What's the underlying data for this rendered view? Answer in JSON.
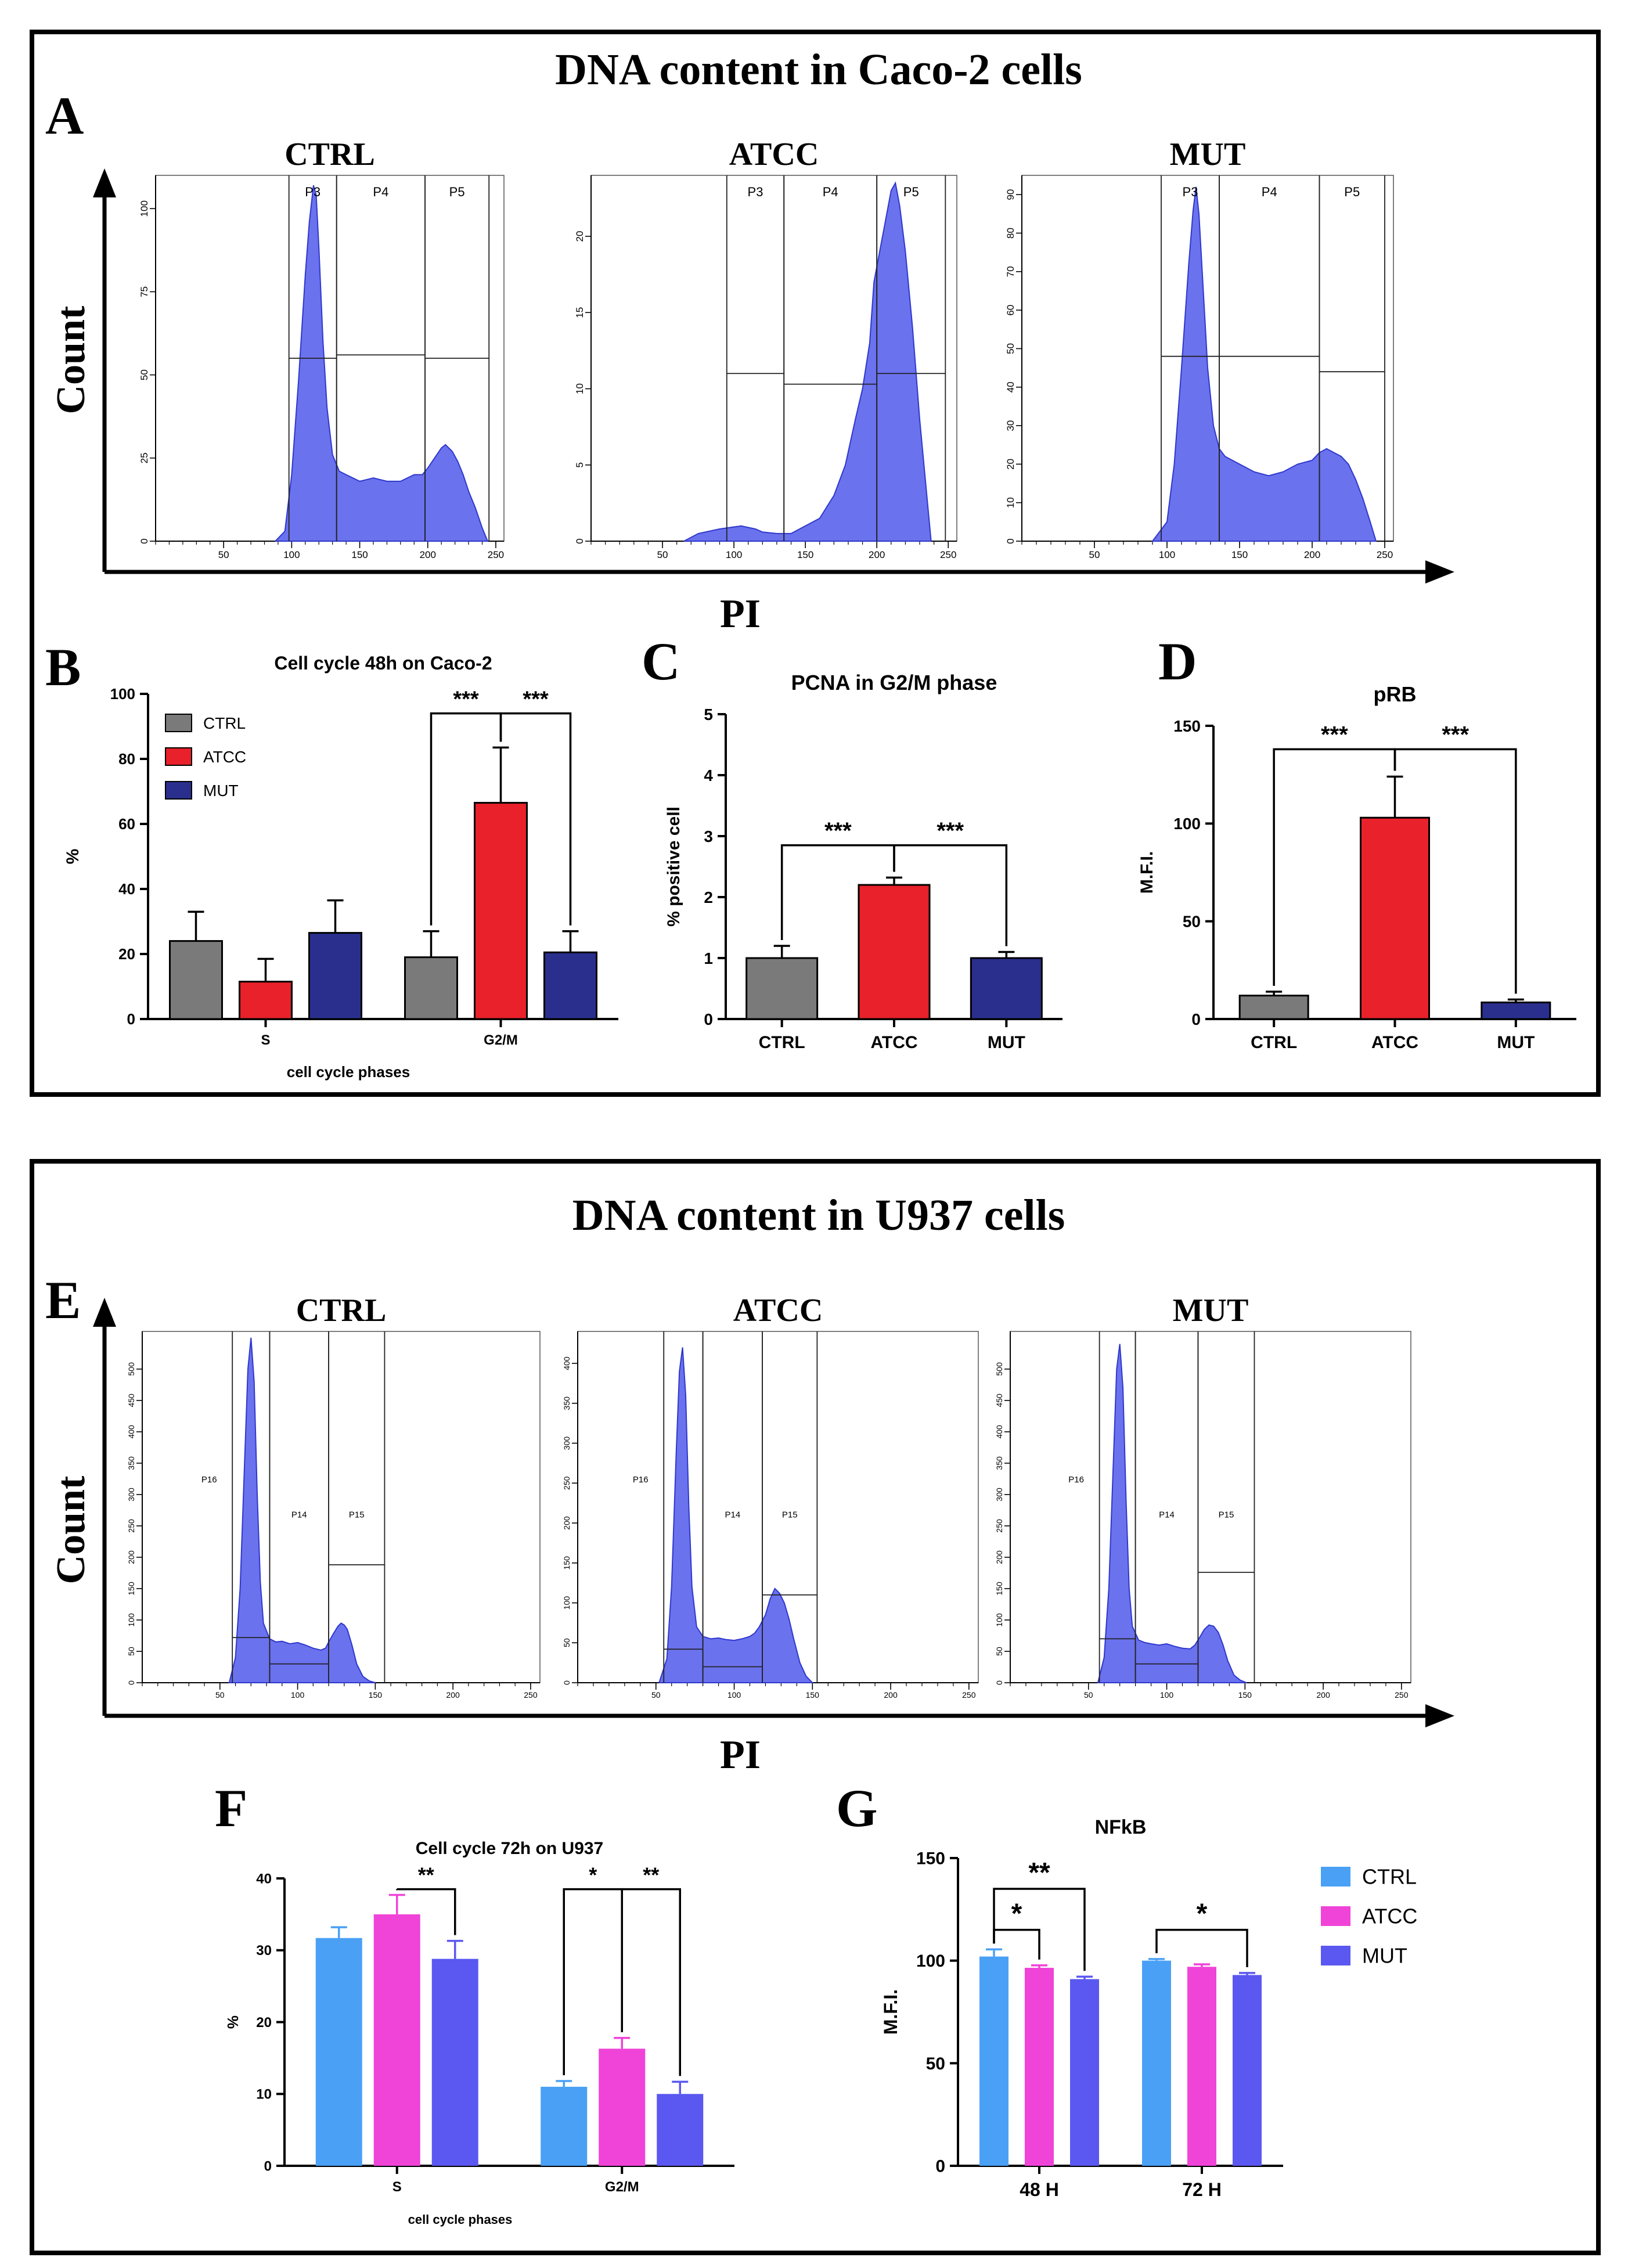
{
  "figure": {
    "top_box_title": "DNA content in Caco-2 cells",
    "bottom_box_title": "DNA content in U937 cells",
    "panel_letters": [
      "A",
      "B",
      "C",
      "D",
      "E",
      "F",
      "G"
    ],
    "count_label": "Count",
    "pi_label": "PI"
  },
  "colors": {
    "histogram_fill": "#6b72ee",
    "histogram_line": "#2f38cc",
    "caco_ctrl": "#7a7a7a",
    "caco_atcc": "#e8212a",
    "caco_mut": "#2a2f8e",
    "u937_ctrl": "#4aa0f5",
    "u937_atcc": "#f043d8",
    "u937_mut": "#5a58f0"
  },
  "chart_data": [
    {
      "type": "area",
      "panel": "A-CTRL",
      "title": "CTRL",
      "xlabel": "PI",
      "ylabel": "Count",
      "xlim": [
        0,
        256
      ],
      "ylim": [
        0,
        110
      ],
      "xticks": [
        "50",
        "100",
        "150",
        "200",
        "250"
      ],
      "yticks": [
        "0",
        "25",
        "50",
        "75",
        "100"
      ],
      "x": [
        88,
        95,
        100,
        105,
        110,
        113,
        116,
        118,
        120,
        123,
        126,
        130,
        135,
        140,
        150,
        160,
        170,
        180,
        190,
        196,
        200,
        205,
        210,
        213,
        218,
        222,
        226,
        230,
        235,
        240,
        244
      ],
      "y": [
        0,
        3,
        20,
        48,
        80,
        96,
        107,
        104,
        88,
        60,
        40,
        26,
        21,
        20,
        18,
        19,
        18,
        18,
        20,
        20,
        22,
        25,
        28,
        29,
        27,
        24,
        20,
        15,
        10,
        4,
        0
      ],
      "gates": [
        {
          "label": "P3",
          "x0": 98,
          "x1": 133,
          "level": 55
        },
        {
          "label": "P4",
          "x0": 133,
          "x1": 198,
          "level": 56
        },
        {
          "label": "P5",
          "x0": 198,
          "x1": 245,
          "level": 55
        }
      ]
    },
    {
      "type": "area",
      "panel": "A-ATCC",
      "title": "ATCC",
      "xlabel": "PI",
      "ylabel": "Count",
      "xlim": [
        0,
        256
      ],
      "ylim": [
        0,
        24
      ],
      "xticks": [
        "50",
        "100",
        "150",
        "200",
        "250"
      ],
      "yticks": [
        "0",
        "5",
        "10",
        "15",
        "20"
      ],
      "x": [
        65,
        75,
        90,
        105,
        115,
        120,
        130,
        140,
        150,
        160,
        170,
        178,
        185,
        190,
        195,
        198,
        202,
        206,
        210,
        213,
        216,
        220,
        225,
        230,
        235,
        238
      ],
      "y": [
        0,
        0.5,
        0.8,
        1,
        0.8,
        0.6,
        0.5,
        0.5,
        1,
        1.5,
        3,
        5,
        8,
        10,
        13,
        17,
        19,
        21,
        23,
        23.5,
        22,
        19,
        14,
        8,
        3,
        0
      ],
      "gates": [
        {
          "label": "P3",
          "x0": 95,
          "x1": 135,
          "level": 11
        },
        {
          "label": "P4",
          "x0": 135,
          "x1": 200,
          "level": 10.3
        },
        {
          "label": "P5",
          "x0": 200,
          "x1": 248,
          "level": 11
        }
      ]
    },
    {
      "type": "area",
      "panel": "A-MUT",
      "title": "MUT",
      "xlabel": "PI",
      "ylabel": "Count",
      "xlim": [
        0,
        256
      ],
      "ylim": [
        0,
        95
      ],
      "xticks": [
        "50",
        "100",
        "150",
        "200",
        "250"
      ],
      "yticks": [
        "0",
        "10",
        "20",
        "30",
        "40",
        "50",
        "60",
        "70",
        "80",
        "90"
      ],
      "x": [
        90,
        100,
        105,
        110,
        115,
        118,
        120,
        122,
        125,
        128,
        132,
        136,
        140,
        150,
        160,
        170,
        180,
        190,
        200,
        205,
        210,
        215,
        220,
        225,
        230,
        235,
        240,
        244
      ],
      "y": [
        0,
        5,
        20,
        45,
        72,
        86,
        92,
        85,
        65,
        45,
        30,
        24,
        22,
        20,
        18,
        17,
        18,
        20,
        21,
        23,
        24,
        23,
        22,
        20,
        16,
        11,
        5,
        0
      ],
      "gates": [
        {
          "label": "P3",
          "x0": 96,
          "x1": 136,
          "level": 48
        },
        {
          "label": "P4",
          "x0": 136,
          "x1": 205,
          "level": 48
        },
        {
          "label": "P5",
          "x0": 205,
          "x1": 250,
          "level": 44
        }
      ]
    },
    {
      "type": "bar",
      "panel": "B",
      "title": "Cell cycle 48h on Caco-2",
      "xlabel": "cell cycle phases",
      "ylabel": "%",
      "ylim": [
        0,
        100
      ],
      "yticks": [
        "0",
        "20",
        "40",
        "60",
        "80",
        "100"
      ],
      "categories": [
        "S",
        "G2/M"
      ],
      "series": [
        {
          "name": "CTRL",
          "values": [
            24,
            19
          ],
          "errors": [
            9,
            8
          ]
        },
        {
          "name": "ATCC",
          "values": [
            11.5,
            66.5
          ],
          "errors": [
            7,
            17
          ]
        },
        {
          "name": "MUT",
          "values": [
            26.5,
            20.5
          ],
          "errors": [
            10,
            6.5
          ]
        }
      ],
      "legend": [
        "CTRL",
        "ATCC",
        "MUT"
      ],
      "significance": [
        {
          "category": "G2/M",
          "from": "CTRL",
          "to": "ATCC",
          "label": "***",
          "level": 94
        },
        {
          "category": "G2/M",
          "from": "ATCC",
          "to": "MUT",
          "label": "***",
          "level": 94
        }
      ]
    },
    {
      "type": "bar",
      "panel": "C",
      "title": "PCNA in G2/M phase",
      "xlabel": "",
      "ylabel": "% positive cell",
      "ylim": [
        0,
        5
      ],
      "yticks": [
        "0",
        "1",
        "2",
        "3",
        "4",
        "5"
      ],
      "categories": [
        "CTRL",
        "ATCC",
        "MUT"
      ],
      "values": [
        1.0,
        2.2,
        1.0
      ],
      "errors": [
        0.2,
        0.12,
        0.1
      ],
      "significance": [
        {
          "from": "CTRL",
          "to": "ATCC",
          "label": "***",
          "level": 2.85
        },
        {
          "from": "ATCC",
          "to": "MUT",
          "label": "***",
          "level": 2.85
        }
      ]
    },
    {
      "type": "bar",
      "panel": "D",
      "title": "pRB",
      "xlabel": "",
      "ylabel": "M.F.I.",
      "ylim": [
        0,
        150
      ],
      "yticks": [
        "0",
        "50",
        "100",
        "150"
      ],
      "categories": [
        "CTRL",
        "ATCC",
        "MUT"
      ],
      "values": [
        12,
        103,
        8.5
      ],
      "errors": [
        2,
        21,
        1.5
      ],
      "significance": [
        {
          "from": "CTRL",
          "to": "ATCC",
          "label": "***",
          "level": 138
        },
        {
          "from": "ATCC",
          "to": "MUT",
          "label": "***",
          "level": 138
        }
      ]
    },
    {
      "type": "area",
      "panel": "E-CTRL",
      "title": "CTRL",
      "xlabel": "PI",
      "ylabel": "Count",
      "xlim": [
        0,
        256
      ],
      "ylim": [
        0,
        560
      ],
      "xticks": [
        "50",
        "100",
        "150",
        "200",
        "250"
      ],
      "yticks": [
        "0",
        "50",
        "100",
        "150",
        "200",
        "250",
        "300",
        "350",
        "400",
        "450",
        "500"
      ],
      "x": [
        56,
        60,
        63,
        66,
        68,
        70,
        72,
        74,
        76,
        78,
        82,
        86,
        90,
        95,
        100,
        105,
        110,
        115,
        118,
        120,
        123,
        126,
        128,
        130,
        132,
        135,
        138,
        142,
        146,
        150
      ],
      "y": [
        0,
        40,
        150,
        360,
        500,
        550,
        480,
        300,
        160,
        95,
        70,
        65,
        66,
        62,
        64,
        60,
        55,
        52,
        55,
        65,
        78,
        90,
        95,
        92,
        85,
        60,
        30,
        10,
        3,
        0
      ],
      "gates": [
        {
          "label": "P16",
          "x0": 58,
          "x1": 82,
          "level": 72
        },
        {
          "label": "P14",
          "x0": 82,
          "x1": 120,
          "level": 30
        },
        {
          "label": "P15",
          "x0": 120,
          "x1": 156,
          "level": 188
        }
      ]
    },
    {
      "type": "area",
      "panel": "E-ATCC",
      "title": "ATCC",
      "xlabel": "PI",
      "ylabel": "Count",
      "xlim": [
        0,
        256
      ],
      "ylim": [
        0,
        440
      ],
      "xticks": [
        "50",
        "100",
        "150",
        "200",
        "250"
      ],
      "yticks": [
        "0",
        "50",
        "100",
        "150",
        "200",
        "250",
        "300",
        "350",
        "400"
      ],
      "x": [
        52,
        57,
        60,
        63,
        65,
        67,
        69,
        71,
        73,
        76,
        80,
        85,
        90,
        95,
        100,
        105,
        110,
        113,
        116,
        120,
        123,
        126,
        129,
        132,
        135,
        138,
        142,
        146,
        150
      ],
      "y": [
        0,
        30,
        120,
        290,
        390,
        420,
        360,
        220,
        120,
        70,
        58,
        55,
        56,
        54,
        53,
        55,
        58,
        62,
        70,
        85,
        105,
        118,
        112,
        100,
        80,
        55,
        25,
        8,
        0
      ],
      "gates": [
        {
          "label": "P16",
          "x0": 55,
          "x1": 80,
          "level": 42
        },
        {
          "label": "P14",
          "x0": 80,
          "x1": 118,
          "level": 20
        },
        {
          "label": "P15",
          "x0": 118,
          "x1": 153,
          "level": 110
        }
      ]
    },
    {
      "type": "area",
      "panel": "E-MUT",
      "title": "MUT",
      "xlabel": "PI",
      "ylabel": "Count",
      "xlim": [
        0,
        256
      ],
      "ylim": [
        0,
        560
      ],
      "xticks": [
        "50",
        "100",
        "150",
        "200",
        "250"
      ],
      "yticks": [
        "0",
        "50",
        "100",
        "150",
        "200",
        "250",
        "300",
        "350",
        "400",
        "450",
        "500"
      ],
      "x": [
        56,
        60,
        63,
        66,
        68,
        70,
        72,
        74,
        76,
        78,
        82,
        86,
        90,
        95,
        100,
        105,
        110,
        115,
        118,
        121,
        124,
        127,
        130,
        133,
        136,
        139,
        143,
        147,
        151
      ],
      "y": [
        0,
        40,
        150,
        360,
        500,
        540,
        470,
        290,
        150,
        90,
        68,
        64,
        62,
        60,
        62,
        58,
        55,
        54,
        60,
        72,
        85,
        92,
        90,
        80,
        60,
        35,
        12,
        4,
        0
      ],
      "gates": [
        {
          "label": "P16",
          "x0": 57,
          "x1": 80,
          "level": 70
        },
        {
          "label": "P14",
          "x0": 80,
          "x1": 120,
          "level": 30
        },
        {
          "label": "P15",
          "x0": 120,
          "x1": 156,
          "level": 176
        }
      ]
    },
    {
      "type": "bar",
      "panel": "F",
      "title": "Cell cycle 72h on U937",
      "xlabel": "cell cycle phases",
      "ylabel": "%",
      "ylim": [
        0,
        40
      ],
      "yticks": [
        "0",
        "10",
        "20",
        "30",
        "40"
      ],
      "categories": [
        "S",
        "G2/M"
      ],
      "series": [
        {
          "name": "CTRL",
          "values": [
            31.7,
            11
          ],
          "errors": [
            1.5,
            0.8
          ]
        },
        {
          "name": "ATCC",
          "values": [
            35,
            16.3
          ],
          "errors": [
            2.7,
            1.5
          ]
        },
        {
          "name": "MUT",
          "values": [
            28.8,
            10
          ],
          "errors": [
            2.5,
            1.7
          ]
        }
      ],
      "significance": [
        {
          "category": "S",
          "from": "ATCC",
          "to": "MUT",
          "label": "**",
          "level": 38.5
        },
        {
          "category": "G2/M",
          "from": "CTRL",
          "to": "ATCC",
          "label": "*",
          "level": 38.5
        },
        {
          "category": "G2/M",
          "from": "ATCC",
          "to": "MUT",
          "label": "**",
          "level": 38.5
        }
      ]
    },
    {
      "type": "bar",
      "panel": "G",
      "title": "NFkB",
      "xlabel": "",
      "ylabel": "M.F.I.",
      "ylim": [
        0,
        150
      ],
      "yticks": [
        "0",
        "50",
        "100",
        "150"
      ],
      "categories": [
        "48 H",
        "72 H"
      ],
      "series": [
        {
          "name": "CTRL",
          "values": [
            102,
            100
          ],
          "errors": [
            3.5,
            0.8
          ]
        },
        {
          "name": "ATCC",
          "values": [
            96.5,
            97
          ],
          "errors": [
            1.2,
            1.2
          ]
        },
        {
          "name": "MUT",
          "values": [
            91,
            93
          ],
          "errors": [
            1.2,
            1
          ]
        }
      ],
      "legend": [
        "CTRL",
        "ATCC",
        "MUT"
      ],
      "significance": [
        {
          "category": "48 H",
          "from": "CTRL",
          "to": "ATCC",
          "label": "*",
          "level": 115
        },
        {
          "category": "48 H",
          "from": "CTRL",
          "to": "MUT",
          "label": "**",
          "level": 135
        },
        {
          "category": "72 H",
          "from": "CTRL",
          "to": "MUT",
          "label": "*",
          "level": 115
        }
      ]
    }
  ]
}
